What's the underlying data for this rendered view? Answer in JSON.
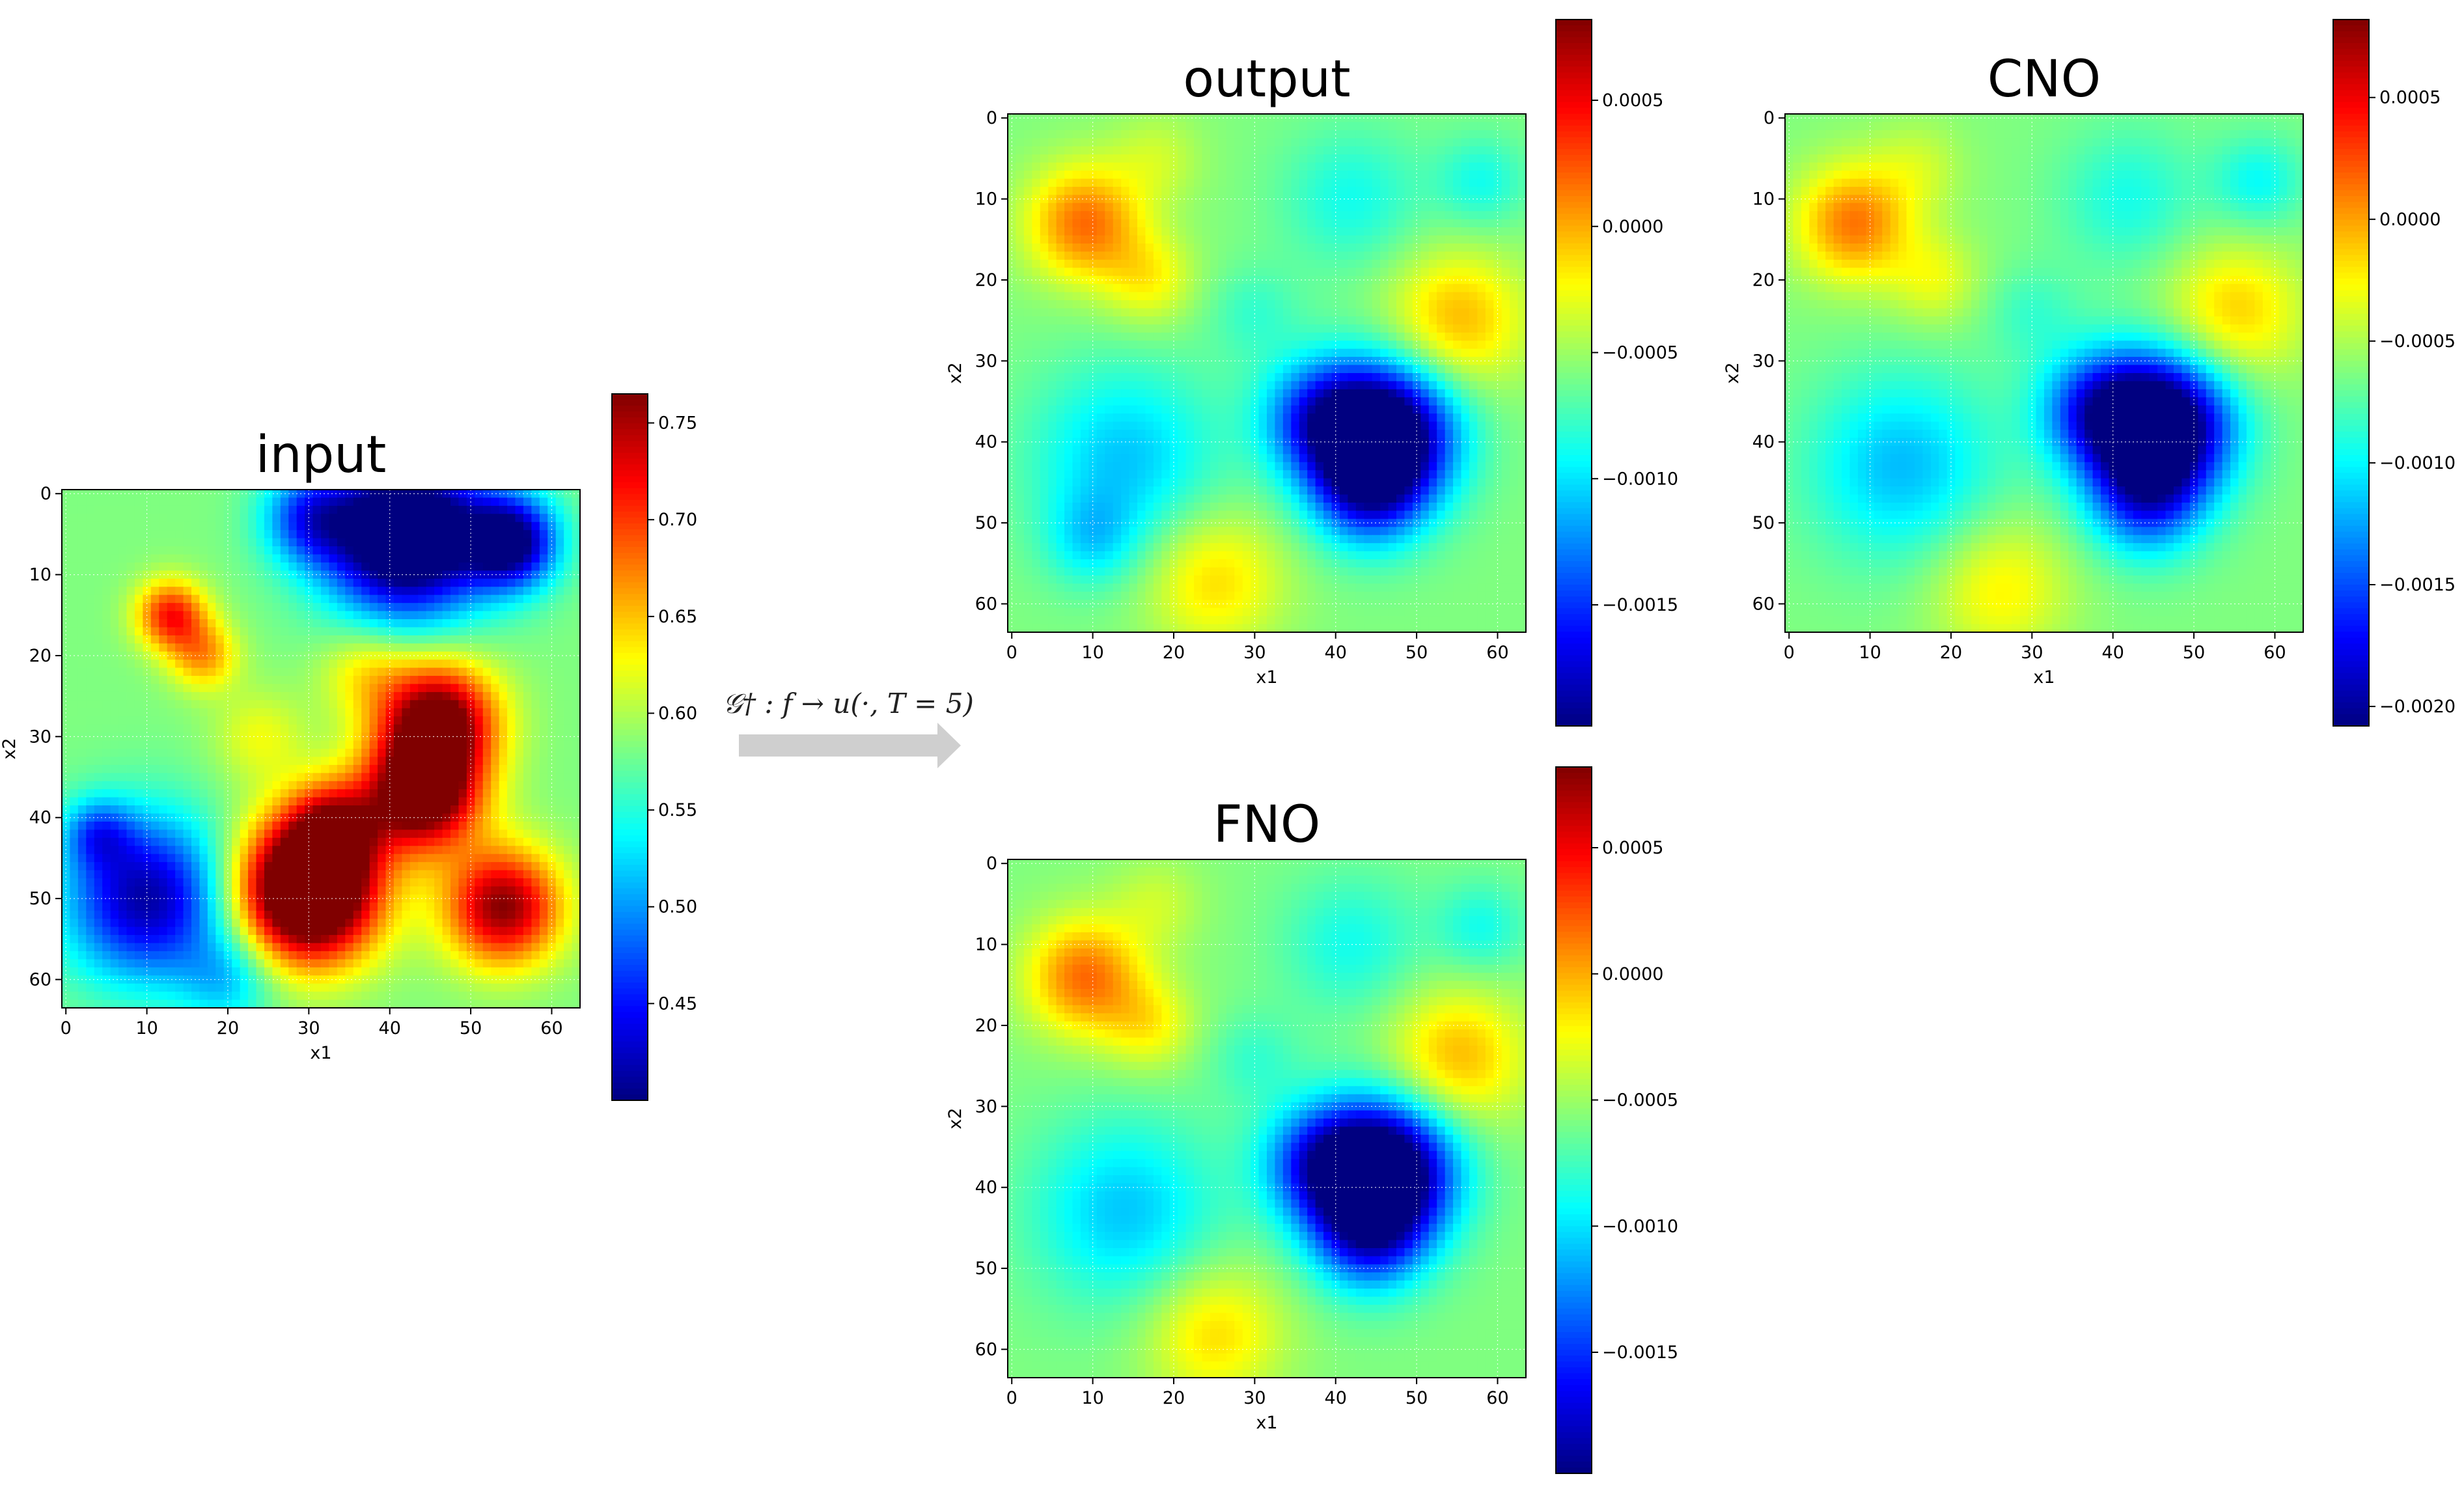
{
  "figure": {
    "arrow_label": "𝒢† : f → u(·, T = 5)"
  },
  "chart_data": [
    {
      "type": "heatmap",
      "title": "input",
      "xlabel": "x1",
      "ylabel": "x2",
      "grid_size": 64,
      "xlim": [
        0,
        63
      ],
      "ylim": [
        63,
        0
      ],
      "x_ticks": [
        0,
        10,
        20,
        30,
        40,
        50,
        60
      ],
      "y_ticks": [
        0,
        10,
        20,
        30,
        40,
        50,
        60
      ],
      "colormap": "jet",
      "grid": true,
      "colorbar": {
        "range": [
          0.4,
          0.765
        ],
        "ticks": [
          0.45,
          0.5,
          0.55,
          0.6,
          0.65,
          0.7,
          0.75
        ],
        "tick_labels": [
          "0.45",
          "0.50",
          "0.55",
          "0.60",
          "0.65",
          "0.70",
          "0.75"
        ]
      },
      "blobs": [
        {
          "x": 42,
          "y": 5,
          "sigma": 7,
          "value": -0.26
        },
        {
          "x": 30,
          "y": 3,
          "sigma": 4,
          "value": -0.1
        },
        {
          "x": 55,
          "y": 6,
          "sigma": 4,
          "value": -0.18
        },
        {
          "x": 10,
          "y": 50,
          "sigma": 7,
          "value": -0.17
        },
        {
          "x": 4,
          "y": 42,
          "sigma": 3,
          "value": -0.08
        },
        {
          "x": 20,
          "y": 60,
          "sigma": 4,
          "value": -0.06
        },
        {
          "x": 30,
          "y": 49,
          "sigma": 6,
          "value": 0.3
        },
        {
          "x": 44,
          "y": 37,
          "sigma": 5,
          "value": 0.22
        },
        {
          "x": 46,
          "y": 28,
          "sigma": 5,
          "value": 0.2
        },
        {
          "x": 54,
          "y": 51,
          "sigma": 5,
          "value": 0.18
        },
        {
          "x": 33,
          "y": 41,
          "sigma": 4,
          "value": 0.12
        },
        {
          "x": 13,
          "y": 15,
          "sigma": 3,
          "value": 0.13
        },
        {
          "x": 17,
          "y": 20,
          "sigma": 3,
          "value": 0.08
        },
        {
          "x": 37,
          "y": 22,
          "sigma": 4,
          "value": 0.05
        },
        {
          "x": 24,
          "y": 30,
          "sigma": 4,
          "value": 0.04
        }
      ]
    },
    {
      "type": "heatmap",
      "title": "output",
      "xlabel": "x1",
      "ylabel": "x2",
      "grid_size": 64,
      "xlim": [
        0,
        63
      ],
      "ylim": [
        63,
        0
      ],
      "x_ticks": [
        0,
        10,
        20,
        30,
        40,
        50,
        60
      ],
      "y_ticks": [
        0,
        10,
        20,
        30,
        40,
        50,
        60
      ],
      "colormap": "jet",
      "grid": true,
      "colorbar": {
        "range": [
          -0.00198,
          0.00082
        ],
        "ticks": [
          0.0005,
          0.0,
          -0.0005,
          -0.001,
          -0.0015
        ],
        "tick_labels": [
          "0.0005",
          "0.0000",
          "−0.0005",
          "−0.0010",
          "−0.0015"
        ]
      },
      "blobs": [
        {
          "x": 9,
          "y": 13,
          "sigma": 5,
          "value": 0.00075
        },
        {
          "x": 55,
          "y": 25,
          "sigma": 6,
          "value": 0.00055
        },
        {
          "x": 25,
          "y": 57,
          "sigma": 6,
          "value": 0.00045
        },
        {
          "x": 17,
          "y": 20,
          "sigma": 4,
          "value": 0.00035
        },
        {
          "x": 18,
          "y": 5,
          "sigma": 4,
          "value": 0.0002
        },
        {
          "x": 46,
          "y": 39,
          "sigma": 6,
          "value": -0.00175
        },
        {
          "x": 38,
          "y": 37,
          "sigma": 5,
          "value": -0.0008
        },
        {
          "x": 44,
          "y": 46,
          "sigma": 5,
          "value": -0.00085
        },
        {
          "x": 14,
          "y": 42,
          "sigma": 8,
          "value": -0.0005
        },
        {
          "x": 10,
          "y": 52,
          "sigma": 4,
          "value": -0.00035
        },
        {
          "x": 42,
          "y": 10,
          "sigma": 6,
          "value": -0.0003
        },
        {
          "x": 58,
          "y": 8,
          "sigma": 4,
          "value": -0.0003
        },
        {
          "x": 30,
          "y": 24,
          "sigma": 4,
          "value": -0.0002
        }
      ]
    },
    {
      "type": "heatmap",
      "title": "CNO",
      "xlabel": "x1",
      "ylabel": "x2",
      "grid_size": 64,
      "xlim": [
        0,
        63
      ],
      "ylim": [
        63,
        0
      ],
      "x_ticks": [
        0,
        10,
        20,
        30,
        40,
        50,
        60
      ],
      "y_ticks": [
        0,
        10,
        20,
        30,
        40,
        50,
        60
      ],
      "colormap": "jet",
      "grid": true,
      "colorbar": {
        "range": [
          -0.00208,
          0.00082
        ],
        "ticks": [
          0.0005,
          0.0,
          -0.0005,
          -0.001,
          -0.0015,
          -0.002
        ],
        "tick_labels": [
          "0.0005",
          "0.0000",
          "−0.0005",
          "−0.0010",
          "−0.0015",
          "−0.0020"
        ]
      },
      "blobs": [
        {
          "x": 8,
          "y": 13,
          "sigma": 5,
          "value": 0.00075
        },
        {
          "x": 55,
          "y": 24,
          "sigma": 6,
          "value": 0.0005
        },
        {
          "x": 26,
          "y": 58,
          "sigma": 6,
          "value": 0.0004
        },
        {
          "x": 18,
          "y": 20,
          "sigma": 4,
          "value": 0.0003
        },
        {
          "x": 16,
          "y": 6,
          "sigma": 4,
          "value": 0.0002
        },
        {
          "x": 46,
          "y": 38,
          "sigma": 6,
          "value": -0.00185
        },
        {
          "x": 38,
          "y": 36,
          "sigma": 5,
          "value": -0.00085
        },
        {
          "x": 44,
          "y": 47,
          "sigma": 5,
          "value": -0.00085
        },
        {
          "x": 14,
          "y": 43,
          "sigma": 8,
          "value": -0.00055
        },
        {
          "x": 42,
          "y": 10,
          "sigma": 6,
          "value": -0.0003
        },
        {
          "x": 58,
          "y": 8,
          "sigma": 4,
          "value": -0.00035
        },
        {
          "x": 30,
          "y": 24,
          "sigma": 4,
          "value": -0.0002
        }
      ]
    },
    {
      "type": "heatmap",
      "title": "FNO",
      "xlabel": "x1",
      "ylabel": "x2",
      "grid_size": 64,
      "xlim": [
        0,
        63
      ],
      "ylim": [
        63,
        0
      ],
      "x_ticks": [
        0,
        10,
        20,
        30,
        40,
        50,
        60
      ],
      "y_ticks": [
        0,
        10,
        20,
        30,
        40,
        50,
        60
      ],
      "colormap": "jet",
      "grid": true,
      "colorbar": {
        "range": [
          -0.00198,
          0.00082
        ],
        "ticks": [
          0.0005,
          0.0,
          -0.0005,
          -0.001,
          -0.0015
        ],
        "tick_labels": [
          "0.0005",
          "0.0000",
          "−0.0005",
          "−0.0010",
          "−0.0015"
        ]
      },
      "blobs": [
        {
          "x": 9,
          "y": 14,
          "sigma": 5,
          "value": 0.00075
        },
        {
          "x": 55,
          "y": 24,
          "sigma": 6,
          "value": 0.00055
        },
        {
          "x": 25,
          "y": 58,
          "sigma": 6,
          "value": 0.00045
        },
        {
          "x": 17,
          "y": 20,
          "sigma": 4,
          "value": 0.00035
        },
        {
          "x": 18,
          "y": 5,
          "sigma": 4,
          "value": 0.0002
        },
        {
          "x": 46,
          "y": 38,
          "sigma": 6,
          "value": -0.0018
        },
        {
          "x": 38,
          "y": 37,
          "sigma": 5,
          "value": -0.0008
        },
        {
          "x": 44,
          "y": 46,
          "sigma": 5,
          "value": -0.00085
        },
        {
          "x": 14,
          "y": 43,
          "sigma": 8,
          "value": -0.0005
        },
        {
          "x": 42,
          "y": 10,
          "sigma": 6,
          "value": -0.0003
        },
        {
          "x": 58,
          "y": 8,
          "sigma": 4,
          "value": -0.0003
        },
        {
          "x": 30,
          "y": 24,
          "sigma": 4,
          "value": -0.0002
        }
      ]
    }
  ]
}
